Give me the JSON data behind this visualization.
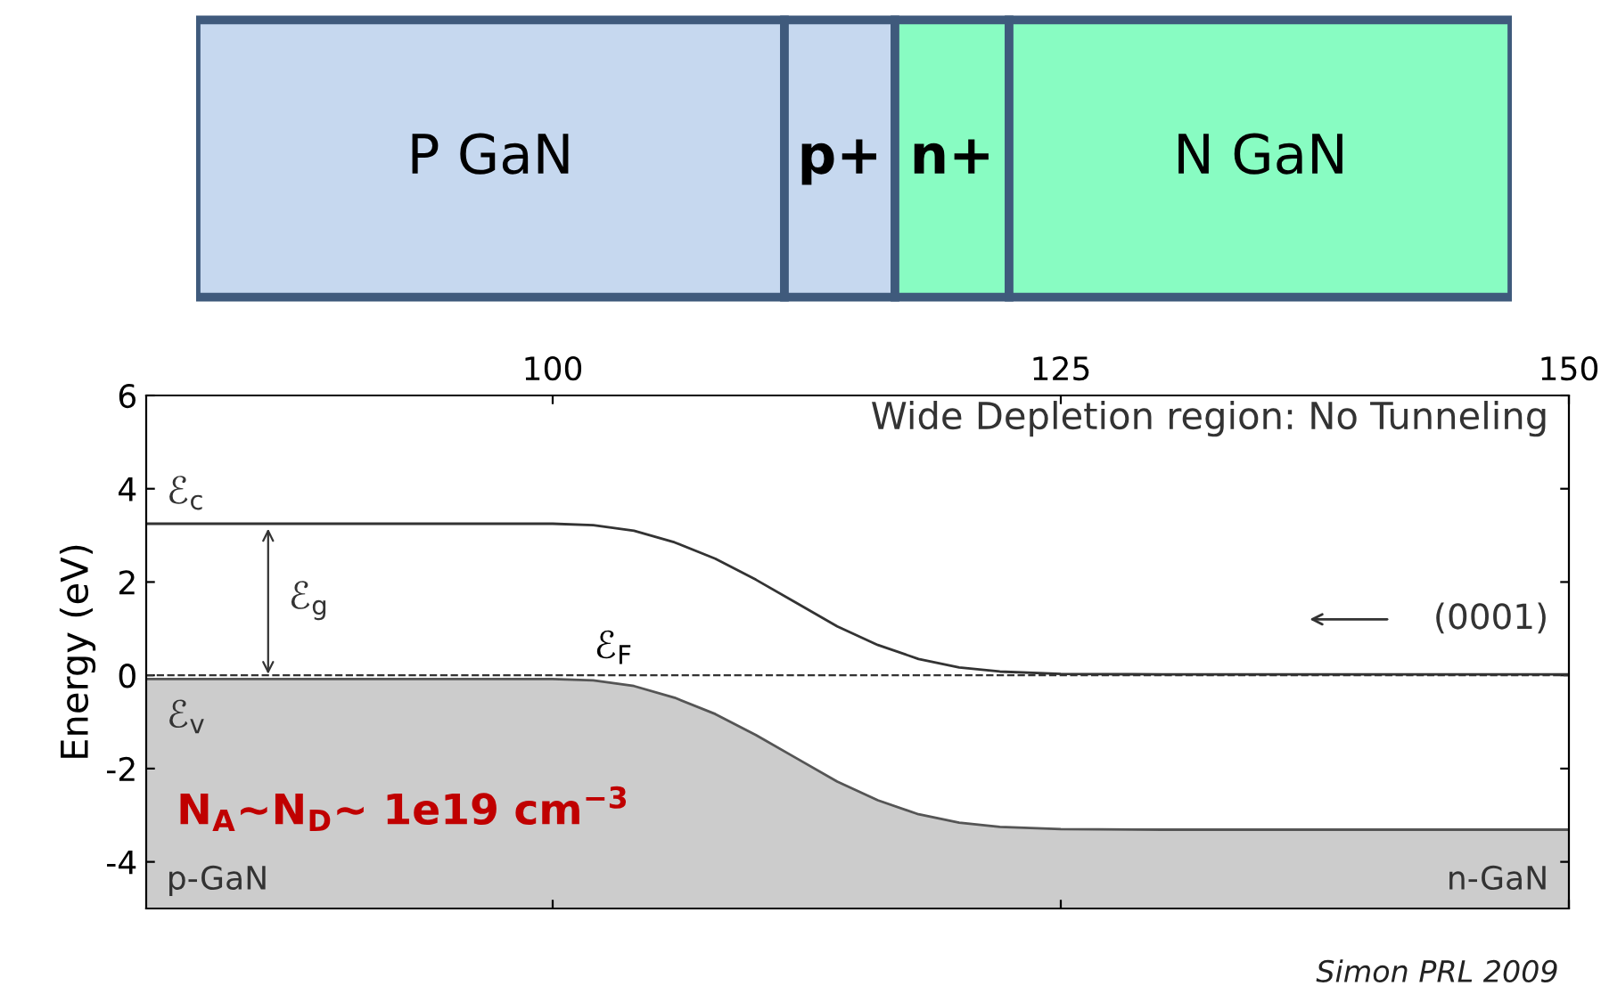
{
  "chart_data": [
    {
      "type": "other",
      "categories": [
        "P GaN",
        "p+",
        "n+",
        "N GaN"
      ],
      "colors": [
        "#c6d8ef",
        "#c6d8ef",
        "#88fcc2",
        "#88fcc2"
      ]
    },
    {
      "type": "line",
      "ylabel": "Energy (eV)",
      "xlim": [
        80,
        150
      ],
      "xticks": [
        100,
        125,
        150
      ],
      "ylim": [
        -5,
        6
      ],
      "yticks": [
        -4,
        -2,
        0,
        2,
        4,
        6
      ],
      "grid": false,
      "legend": false,
      "series": [
        {
          "type": "line",
          "color": "#333333",
          "x": [
            80,
            100,
            102,
            104,
            106,
            108,
            110,
            112,
            114,
            116,
            118,
            120,
            122,
            125,
            130,
            150
          ],
          "values": [
            3.25,
            3.25,
            3.22,
            3.1,
            2.85,
            2.5,
            2.05,
            1.55,
            1.05,
            0.65,
            0.35,
            0.17,
            0.08,
            0.03,
            0.02,
            0.02
          ]
        },
        {
          "type": "line",
          "color": "#555555",
          "x": [
            80,
            100,
            102,
            104,
            106,
            108,
            110,
            112,
            114,
            116,
            118,
            120,
            122,
            125,
            130,
            150
          ],
          "values": [
            -0.08,
            -0.08,
            -0.11,
            -0.23,
            -0.48,
            -0.83,
            -1.28,
            -1.78,
            -2.28,
            -2.68,
            -2.98,
            -3.16,
            -3.25,
            -3.3,
            -3.31,
            -3.31
          ],
          "upper": [
            -0.08,
            -0.08,
            -0.11,
            -0.23,
            -0.48,
            -0.83,
            -1.28,
            -1.78,
            -2.28,
            -2.68,
            -2.98,
            -3.16,
            -3.25,
            -3.3,
            -3.31,
            -3.31
          ],
          "lower": [
            -5,
            -5,
            -5,
            -5,
            -5,
            -5,
            -5,
            -5,
            -5,
            -5,
            -5,
            -5,
            -5,
            -5,
            -5,
            -5
          ]
        }
      ],
      "ref_lines": [
        {
          "axis": "y",
          "value": 0,
          "label": "ℰ$_{F}$",
          "line_style": "dashed",
          "color": "#333333"
        }
      ],
      "annotations": [
        "Wide Depletion region: No Tunneling",
        "(0001)",
        "p-GaN",
        "n-GaN",
        "ℰ$_{c}$",
        "ℰ$_{v}$",
        "ℰ$_{g}$",
        "N$_{A}$~N$_{D}$~ 1e19 cm$^{−3}$",
        "Simon PRL 2009"
      ]
    }
  ]
}
